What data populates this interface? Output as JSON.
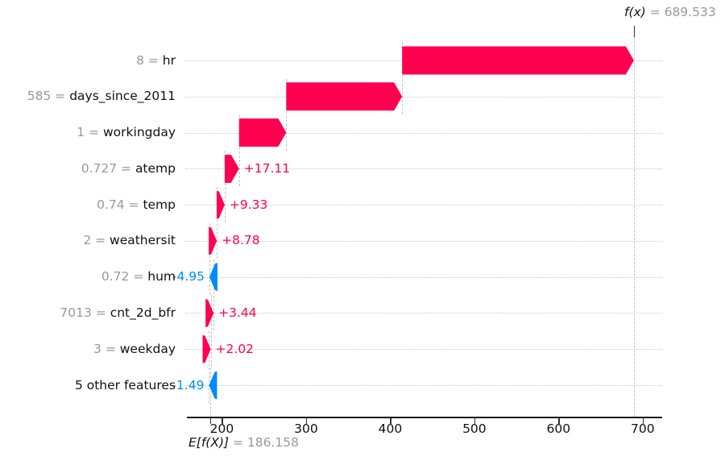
{
  "figure": {
    "fx_label": "f(x)",
    "fx_value": "= 689.533",
    "ef_label": "E[f(X)]",
    "ef_value": "= 186.158",
    "value_separator": " = ",
    "colors": {
      "positive": "#ff0051",
      "negative": "#008bfb",
      "value_muted": "#999999",
      "axis": "#1a1a1a",
      "dashed": "#c4c4c4"
    }
  },
  "chart_data": {
    "type": "bar",
    "variant": "shap-waterfall",
    "title": "",
    "xlabel": "",
    "ylabel": "",
    "fx": 689.533,
    "base_value": 186.158,
    "xlim": [
      158,
      723
    ],
    "grid": "horizontal-dotted",
    "legend": "none",
    "x_tick_values": [
      200,
      300,
      400,
      500,
      600,
      700
    ],
    "x_tick_labels": [
      "200",
      "300",
      "400",
      "500",
      "600",
      "700"
    ],
    "features": [
      {
        "value": "8",
        "name": "hr",
        "shap": 275.38,
        "label": "+275.38"
      },
      {
        "value": "585",
        "name": "days_since_2011",
        "shap": 137.66,
        "label": "+137.66"
      },
      {
        "value": "1",
        "name": "workingday",
        "shap": 56.09,
        "label": "+56.09"
      },
      {
        "value": "0.727",
        "name": "atemp",
        "shap": 17.11,
        "label": "+17.11"
      },
      {
        "value": "0.74",
        "name": "temp",
        "shap": 9.33,
        "label": "+9.33"
      },
      {
        "value": "2",
        "name": "weathersit",
        "shap": 8.78,
        "label": "+8.78"
      },
      {
        "value": "0.72",
        "name": "hum",
        "shap": -4.95,
        "label": "-4.95"
      },
      {
        "value": "7013",
        "name": "cnt_2d_bfr",
        "shap": 3.44,
        "label": "+3.44"
      },
      {
        "value": "3",
        "name": "weekday",
        "shap": 2.02,
        "label": "+2.02"
      },
      {
        "value": "",
        "name": "5 other features",
        "shap": -1.49,
        "label": "-1.49"
      }
    ]
  }
}
